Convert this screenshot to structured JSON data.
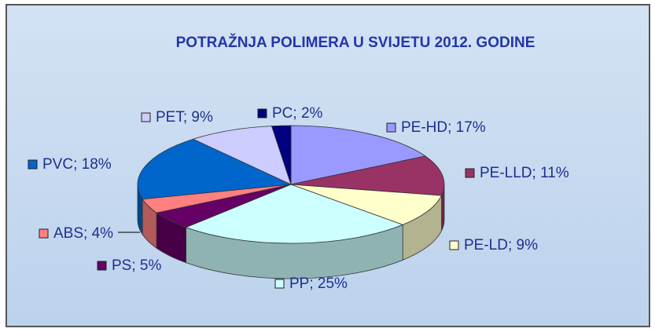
{
  "chart_data": {
    "type": "pie3d",
    "title": "POTRAŽNJA POLIMERA U SVIJETU 2012. GODINE",
    "values": [
      17,
      11,
      9,
      25,
      5,
      4,
      18,
      9,
      2
    ],
    "value_labels": [
      "PE-HD; 17%",
      "PE-LLD; 11%",
      "PE-LD; 9%",
      "PP; 25%",
      "PS; 5%",
      "ABS; 4%",
      "PVC; 18%",
      "PET; 9%",
      "PC; 2%"
    ],
    "colors": [
      "#9999ff",
      "#993366",
      "#ffffcc",
      "#ccffff",
      "#660066",
      "#ff8080",
      "#0066cc",
      "#ccccff",
      "#000080"
    ]
  }
}
